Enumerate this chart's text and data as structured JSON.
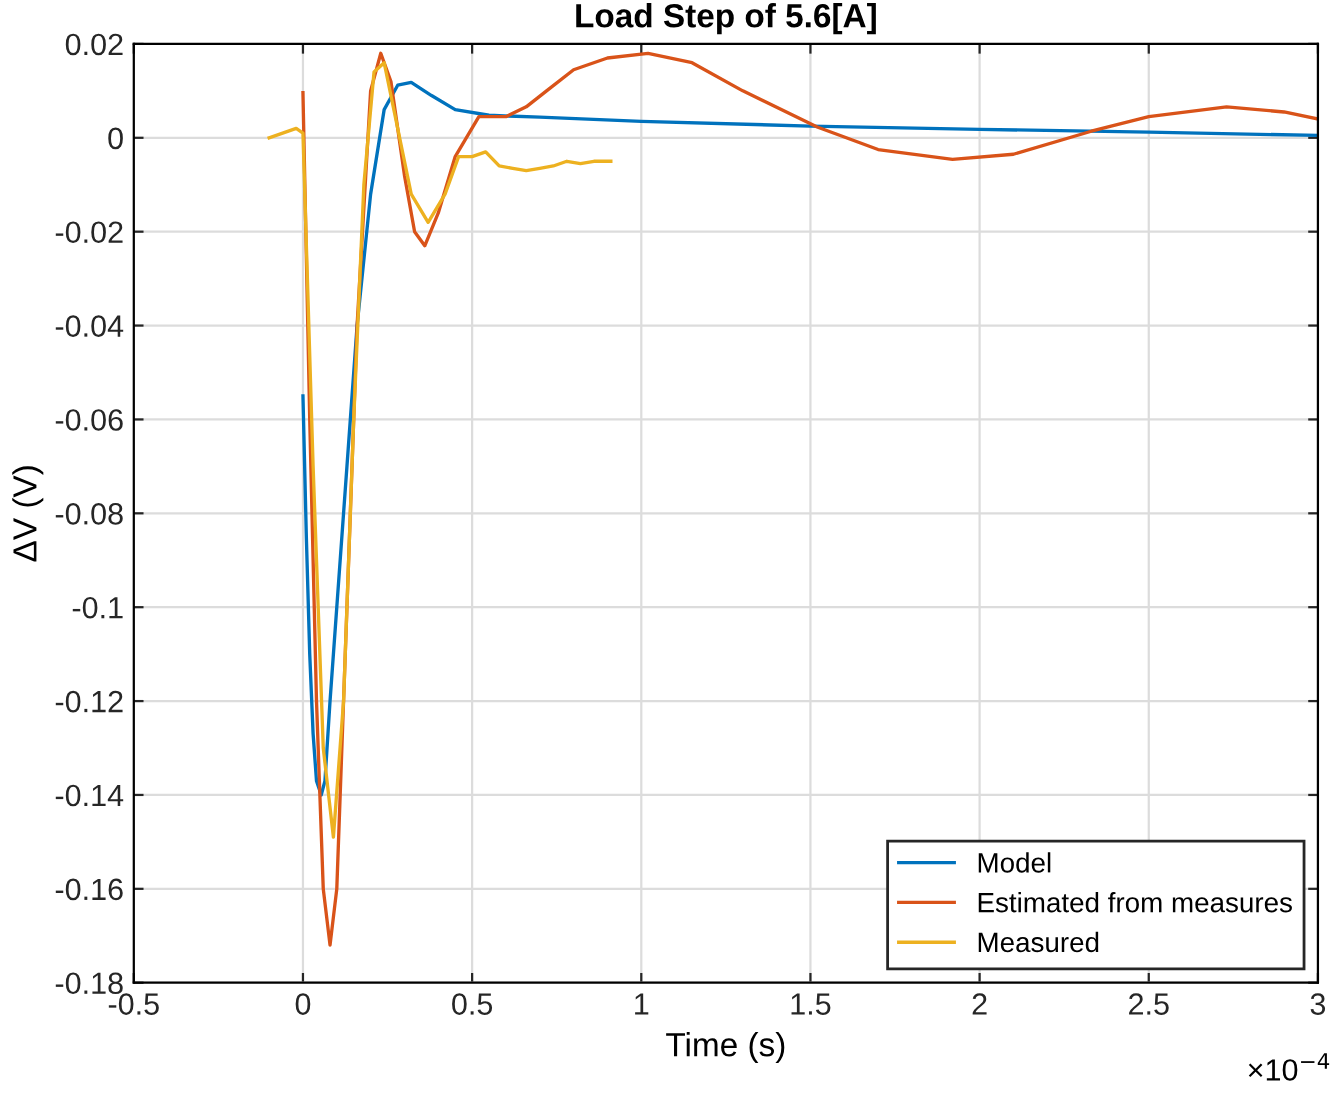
{
  "chart_data": {
    "type": "line",
    "title": "Load Step of 5.6[A]",
    "xlabel": "Time (s)",
    "ylabel": "ΔV (V)",
    "xlim": [
      -0.5,
      3
    ],
    "ylim": [
      -0.18,
      0.02
    ],
    "xticks": [
      -0.5,
      0,
      0.5,
      1,
      1.5,
      2,
      2.5,
      3
    ],
    "yticks": [
      -0.18,
      -0.16,
      -0.14,
      -0.12,
      -0.1,
      -0.08,
      -0.06,
      -0.04,
      -0.02,
      0,
      0.02
    ],
    "annotations": [
      "×10$^{−4}$"
    ],
    "grid": true,
    "legend": "bottom right",
    "series": [
      {
        "name": "Model",
        "color": "#0072bd",
        "x": [
          0,
          0.01,
          0.02,
          0.03,
          0.04,
          0.054,
          0.065,
          0.08,
          0.1,
          0.13,
          0.16,
          0.2,
          0.24,
          0.28,
          0.32,
          0.38,
          0.45,
          0.55,
          0.7,
          1,
          1.5,
          2,
          2.5,
          3
        ],
        "values": [
          -0.055,
          -0.085,
          -0.11,
          -0.127,
          -0.137,
          -0.14,
          -0.137,
          -0.12,
          -0.1,
          -0.07,
          -0.04,
          -0.012,
          0.006,
          0.0112,
          0.0118,
          0.009,
          0.006,
          0.0048,
          0.0044,
          0.0035,
          0.0025,
          0.0018,
          0.0012,
          0.0005
        ]
      },
      {
        "name": "Estimated from measures",
        "color": "#d95319",
        "x": [
          0,
          0.02,
          0.04,
          0.06,
          0.08,
          0.1,
          0.13,
          0.16,
          0.2,
          0.23,
          0.26,
          0.3,
          0.33,
          0.36,
          0.4,
          0.45,
          0.52,
          0.6,
          0.66,
          0.72,
          0.8,
          0.9,
          1.02,
          1.15,
          1.3,
          1.52,
          1.7,
          1.92,
          2.1,
          2.33,
          2.5,
          2.73,
          2.9,
          3
        ],
        "values": [
          0.0096,
          -0.06,
          -0.12,
          -0.16,
          -0.172,
          -0.16,
          -0.1,
          -0.04,
          0.01,
          0.018,
          0.012,
          -0.008,
          -0.02,
          -0.023,
          -0.016,
          -0.004,
          0.0045,
          0.0045,
          0.0066,
          0.01,
          0.0145,
          0.017,
          0.018,
          0.016,
          0.01,
          0.0023,
          -0.0025,
          -0.0046,
          -0.0035,
          0.0014,
          0.0045,
          0.0066,
          0.0055,
          0.004
        ]
      },
      {
        "name": "Measured",
        "color": "#edb120",
        "x": [
          -0.1,
          -0.06,
          -0.02,
          0,
          0.03,
          0.06,
          0.09,
          0.12,
          0.15,
          0.18,
          0.21,
          0.24,
          0.28,
          0.32,
          0.37,
          0.42,
          0.46,
          0.5,
          0.54,
          0.58,
          0.62,
          0.66,
          0.7,
          0.74,
          0.78,
          0.82,
          0.86,
          0.91
        ],
        "values": [
          0,
          0.001,
          0.002,
          0.001,
          -0.07,
          -0.13,
          -0.149,
          -0.12,
          -0.06,
          -0.01,
          0.014,
          0.016,
          0.002,
          -0.012,
          -0.018,
          -0.012,
          -0.004,
          -0.004,
          -0.003,
          -0.006,
          -0.0065,
          -0.007,
          -0.0065,
          -0.006,
          -0.005,
          -0.0055,
          -0.005,
          -0.005
        ]
      }
    ]
  }
}
